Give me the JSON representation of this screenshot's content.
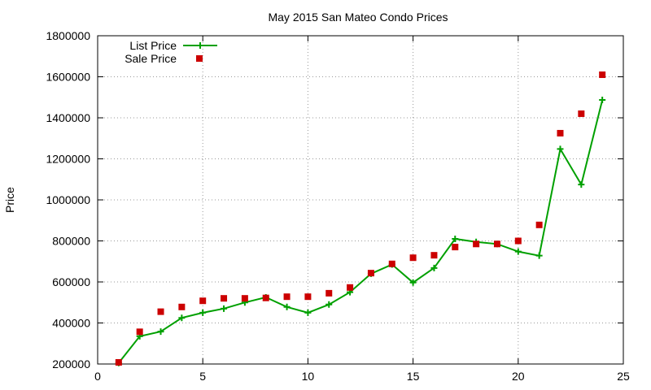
{
  "chart_data": {
    "type": "line",
    "title": "May 2015 San Mateo Condo Prices",
    "xlabel": "",
    "ylabel": "Price",
    "xlim": [
      0,
      25
    ],
    "ylim": [
      200000,
      1800000
    ],
    "xticks": [
      0,
      5,
      10,
      15,
      20,
      25
    ],
    "yticks": [
      200000,
      400000,
      600000,
      800000,
      1000000,
      1200000,
      1400000,
      1600000,
      1800000
    ],
    "grid": true,
    "legend_position": "top-left",
    "series": [
      {
        "name": "List Price",
        "style": "line+cross",
        "color": "#00a000",
        "x": [
          1,
          2,
          3,
          4,
          5,
          6,
          7,
          8,
          9,
          10,
          11,
          12,
          13,
          14,
          15,
          16,
          17,
          18,
          19,
          20,
          21,
          22,
          23,
          24
        ],
        "y": [
          205000,
          335000,
          358000,
          425000,
          450000,
          470000,
          500000,
          525000,
          478000,
          450000,
          490000,
          550000,
          640000,
          685000,
          597000,
          668000,
          810000,
          795000,
          785000,
          748000,
          728000,
          1248000,
          1075000,
          1487000
        ]
      },
      {
        "name": "Sale Price",
        "style": "square",
        "color": "#cc0000",
        "x": [
          1,
          2,
          3,
          4,
          5,
          6,
          7,
          8,
          9,
          10,
          11,
          12,
          13,
          14,
          15,
          16,
          17,
          18,
          19,
          20,
          21,
          22,
          23,
          24
        ],
        "y": [
          208000,
          357000,
          455000,
          478000,
          508000,
          520000,
          520000,
          522000,
          528000,
          528000,
          545000,
          573000,
          643000,
          688000,
          718000,
          730000,
          770000,
          785000,
          785000,
          800000,
          878000,
          1325000,
          1420000,
          1610000
        ]
      }
    ]
  }
}
